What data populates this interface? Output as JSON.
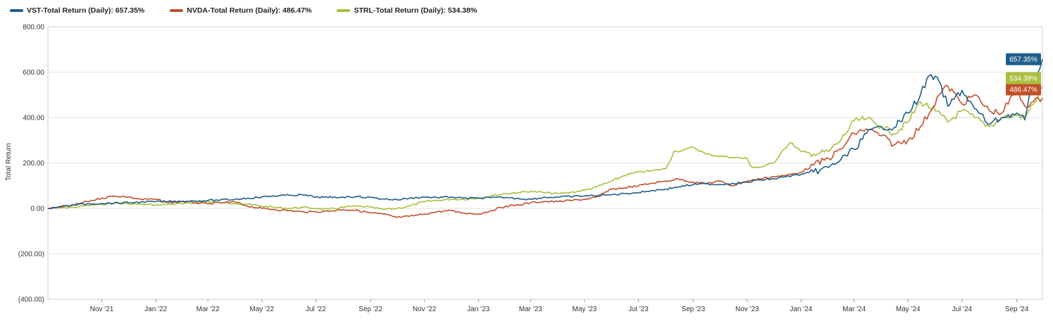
{
  "legend": [
    {
      "label": "VST-Total Return (Daily): 657.35%",
      "color": "#1f5f8b"
    },
    {
      "label": "NVDA-Total Return (Daily): 486.47%",
      "color": "#c0502a"
    },
    {
      "label": "STRL-Total Return (Daily): 534.38%",
      "color": "#a9bf3f"
    }
  ],
  "chart_data": {
    "type": "line",
    "ylabel": "Total Return",
    "ylim": [
      -400,
      800
    ],
    "yticks": [
      800,
      600,
      400,
      200,
      0,
      -200,
      -400
    ],
    "ytick_labels": [
      "800.00",
      "600.00",
      "400.00",
      "200.00",
      "0.00",
      "(200.00)",
      "(400.00)"
    ],
    "x_start": "2021-09-01",
    "x_end": "2024-09-30",
    "xticks": [
      {
        "date": "2021-11-01",
        "label": "Nov '21"
      },
      {
        "date": "2022-01-01",
        "label": "Jan '22"
      },
      {
        "date": "2022-03-01",
        "label": "Mar '22"
      },
      {
        "date": "2022-05-01",
        "label": "May '22"
      },
      {
        "date": "2022-07-01",
        "label": "Jul '22"
      },
      {
        "date": "2022-09-01",
        "label": "Sep '22"
      },
      {
        "date": "2022-11-01",
        "label": "Nov '22"
      },
      {
        "date": "2023-01-01",
        "label": "Jan '23"
      },
      {
        "date": "2023-03-01",
        "label": "Mar '23"
      },
      {
        "date": "2023-05-01",
        "label": "May '23"
      },
      {
        "date": "2023-07-01",
        "label": "Jul '23"
      },
      {
        "date": "2023-09-01",
        "label": "Sep '23"
      },
      {
        "date": "2023-11-01",
        "label": "Nov '23"
      },
      {
        "date": "2024-01-01",
        "label": "Jan '24"
      },
      {
        "date": "2024-03-01",
        "label": "Mar '24"
      },
      {
        "date": "2024-05-01",
        "label": "May '24"
      },
      {
        "date": "2024-07-01",
        "label": "Jul '24"
      },
      {
        "date": "2024-09-01",
        "label": "Sep '24"
      }
    ],
    "grid": true,
    "legend_position": "top-left",
    "series": [
      {
        "name": "VST-Total Return (Daily)",
        "color": "#1f5f8b",
        "end_label": "657.35%",
        "points": [
          [
            "2021-09-01",
            0
          ],
          [
            "2021-09-15",
            8
          ],
          [
            "2021-10-01",
            15
          ],
          [
            "2021-10-15",
            20
          ],
          [
            "2021-11-01",
            22
          ],
          [
            "2021-11-15",
            24
          ],
          [
            "2021-12-01",
            25
          ],
          [
            "2021-12-15",
            28
          ],
          [
            "2022-01-01",
            30
          ],
          [
            "2022-01-15",
            30
          ],
          [
            "2022-02-01",
            32
          ],
          [
            "2022-02-15",
            33
          ],
          [
            "2022-03-01",
            35
          ],
          [
            "2022-03-15",
            37
          ],
          [
            "2022-04-01",
            40
          ],
          [
            "2022-04-15",
            45
          ],
          [
            "2022-05-01",
            50
          ],
          [
            "2022-05-15",
            55
          ],
          [
            "2022-06-01",
            58
          ],
          [
            "2022-06-15",
            60
          ],
          [
            "2022-07-01",
            50
          ],
          [
            "2022-07-15",
            48
          ],
          [
            "2022-08-01",
            50
          ],
          [
            "2022-08-15",
            52
          ],
          [
            "2022-09-01",
            48
          ],
          [
            "2022-09-15",
            42
          ],
          [
            "2022-10-01",
            38
          ],
          [
            "2022-10-15",
            45
          ],
          [
            "2022-11-01",
            50
          ],
          [
            "2022-11-15",
            48
          ],
          [
            "2022-12-01",
            50
          ],
          [
            "2022-12-15",
            45
          ],
          [
            "2023-01-01",
            45
          ],
          [
            "2023-01-15",
            47
          ],
          [
            "2023-02-01",
            48
          ],
          [
            "2023-02-15",
            44
          ],
          [
            "2023-03-01",
            40
          ],
          [
            "2023-03-15",
            48
          ],
          [
            "2023-04-01",
            50
          ],
          [
            "2023-04-15",
            52
          ],
          [
            "2023-05-01",
            55
          ],
          [
            "2023-05-15",
            56
          ],
          [
            "2023-06-01",
            60
          ],
          [
            "2023-06-15",
            65
          ],
          [
            "2023-07-01",
            70
          ],
          [
            "2023-07-15",
            78
          ],
          [
            "2023-08-01",
            85
          ],
          [
            "2023-08-15",
            95
          ],
          [
            "2023-09-01",
            105
          ],
          [
            "2023-09-15",
            108
          ],
          [
            "2023-10-01",
            105
          ],
          [
            "2023-10-15",
            110
          ],
          [
            "2023-11-01",
            115
          ],
          [
            "2023-11-15",
            125
          ],
          [
            "2023-12-01",
            130
          ],
          [
            "2023-12-15",
            140
          ],
          [
            "2024-01-01",
            150
          ],
          [
            "2024-01-15",
            160
          ],
          [
            "2024-02-01",
            180
          ],
          [
            "2024-02-15",
            215
          ],
          [
            "2024-03-01",
            260
          ],
          [
            "2024-03-15",
            330
          ],
          [
            "2024-04-01",
            360
          ],
          [
            "2024-04-15",
            355
          ],
          [
            "2024-05-01",
            420
          ],
          [
            "2024-05-15",
            500
          ],
          [
            "2024-05-25",
            585
          ],
          [
            "2024-06-05",
            560
          ],
          [
            "2024-06-15",
            450
          ],
          [
            "2024-07-01",
            520
          ],
          [
            "2024-07-15",
            440
          ],
          [
            "2024-08-01",
            370
          ],
          [
            "2024-08-15",
            400
          ],
          [
            "2024-09-01",
            420
          ],
          [
            "2024-09-10",
            390
          ],
          [
            "2024-09-20",
            560
          ],
          [
            "2024-09-30",
            657
          ]
        ]
      },
      {
        "name": "NVDA-Total Return (Daily)",
        "color": "#c0502a",
        "end_label": "486.47%",
        "points": [
          [
            "2021-09-01",
            0
          ],
          [
            "2021-09-15",
            5
          ],
          [
            "2021-10-01",
            15
          ],
          [
            "2021-10-15",
            30
          ],
          [
            "2021-11-01",
            45
          ],
          [
            "2021-11-15",
            55
          ],
          [
            "2021-12-01",
            50
          ],
          [
            "2021-12-15",
            40
          ],
          [
            "2022-01-01",
            40
          ],
          [
            "2022-01-15",
            25
          ],
          [
            "2022-02-01",
            30
          ],
          [
            "2022-02-15",
            25
          ],
          [
            "2022-03-01",
            20
          ],
          [
            "2022-03-15",
            25
          ],
          [
            "2022-04-01",
            28
          ],
          [
            "2022-04-15",
            10
          ],
          [
            "2022-05-01",
            0
          ],
          [
            "2022-05-15",
            -5
          ],
          [
            "2022-06-01",
            -10
          ],
          [
            "2022-06-15",
            -15
          ],
          [
            "2022-07-01",
            -15
          ],
          [
            "2022-07-15",
            -12
          ],
          [
            "2022-08-01",
            -5
          ],
          [
            "2022-08-15",
            -8
          ],
          [
            "2022-09-01",
            -20
          ],
          [
            "2022-09-15",
            -25
          ],
          [
            "2022-10-01",
            -40
          ],
          [
            "2022-10-15",
            -35
          ],
          [
            "2022-11-01",
            -25
          ],
          [
            "2022-11-15",
            -15
          ],
          [
            "2022-12-01",
            -10
          ],
          [
            "2022-12-15",
            -20
          ],
          [
            "2023-01-01",
            -25
          ],
          [
            "2023-01-15",
            -10
          ],
          [
            "2023-02-01",
            10
          ],
          [
            "2023-02-15",
            15
          ],
          [
            "2023-03-01",
            25
          ],
          [
            "2023-03-15",
            30
          ],
          [
            "2023-04-01",
            30
          ],
          [
            "2023-04-15",
            35
          ],
          [
            "2023-05-01",
            40
          ],
          [
            "2023-05-15",
            50
          ],
          [
            "2023-06-01",
            85
          ],
          [
            "2023-06-15",
            90
          ],
          [
            "2023-07-01",
            100
          ],
          [
            "2023-07-15",
            110
          ],
          [
            "2023-08-01",
            120
          ],
          [
            "2023-08-15",
            130
          ],
          [
            "2023-09-01",
            115
          ],
          [
            "2023-09-15",
            110
          ],
          [
            "2023-10-01",
            120
          ],
          [
            "2023-10-15",
            100
          ],
          [
            "2023-11-01",
            120
          ],
          [
            "2023-11-15",
            130
          ],
          [
            "2023-12-01",
            140
          ],
          [
            "2023-12-15",
            145
          ],
          [
            "2024-01-01",
            160
          ],
          [
            "2024-01-15",
            190
          ],
          [
            "2024-02-01",
            220
          ],
          [
            "2024-02-15",
            260
          ],
          [
            "2024-03-01",
            330
          ],
          [
            "2024-03-15",
            350
          ],
          [
            "2024-04-01",
            320
          ],
          [
            "2024-04-15",
            280
          ],
          [
            "2024-05-01",
            300
          ],
          [
            "2024-05-15",
            360
          ],
          [
            "2024-05-25",
            420
          ],
          [
            "2024-06-05",
            500
          ],
          [
            "2024-06-15",
            540
          ],
          [
            "2024-07-01",
            460
          ],
          [
            "2024-07-15",
            500
          ],
          [
            "2024-08-01",
            430
          ],
          [
            "2024-08-15",
            420
          ],
          [
            "2024-09-01",
            520
          ],
          [
            "2024-09-10",
            450
          ],
          [
            "2024-09-20",
            470
          ],
          [
            "2024-09-30",
            486
          ]
        ]
      },
      {
        "name": "STRL-Total Return (Daily)",
        "color": "#a9bf3f",
        "end_label": "534.38%",
        "points": [
          [
            "2021-09-01",
            0
          ],
          [
            "2021-09-15",
            2
          ],
          [
            "2021-10-01",
            5
          ],
          [
            "2021-10-15",
            12
          ],
          [
            "2021-11-01",
            18
          ],
          [
            "2021-11-15",
            22
          ],
          [
            "2021-12-01",
            20
          ],
          [
            "2021-12-15",
            18
          ],
          [
            "2022-01-01",
            15
          ],
          [
            "2022-01-15",
            18
          ],
          [
            "2022-02-01",
            20
          ],
          [
            "2022-02-15",
            25
          ],
          [
            "2022-03-01",
            30
          ],
          [
            "2022-03-15",
            25
          ],
          [
            "2022-04-01",
            22
          ],
          [
            "2022-04-15",
            18
          ],
          [
            "2022-05-01",
            10
          ],
          [
            "2022-05-15",
            5
          ],
          [
            "2022-06-01",
            0
          ],
          [
            "2022-06-15",
            5
          ],
          [
            "2022-07-01",
            0
          ],
          [
            "2022-07-15",
            -5
          ],
          [
            "2022-08-01",
            5
          ],
          [
            "2022-08-15",
            10
          ],
          [
            "2022-09-01",
            5
          ],
          [
            "2022-09-15",
            -5
          ],
          [
            "2022-10-01",
            0
          ],
          [
            "2022-10-15",
            10
          ],
          [
            "2022-11-01",
            30
          ],
          [
            "2022-11-15",
            35
          ],
          [
            "2022-12-01",
            40
          ],
          [
            "2022-12-15",
            40
          ],
          [
            "2023-01-01",
            45
          ],
          [
            "2023-01-15",
            55
          ],
          [
            "2023-02-01",
            65
          ],
          [
            "2023-02-15",
            70
          ],
          [
            "2023-03-01",
            75
          ],
          [
            "2023-03-15",
            70
          ],
          [
            "2023-04-01",
            65
          ],
          [
            "2023-04-15",
            70
          ],
          [
            "2023-05-01",
            80
          ],
          [
            "2023-05-15",
            95
          ],
          [
            "2023-06-01",
            120
          ],
          [
            "2023-06-15",
            145
          ],
          [
            "2023-07-01",
            160
          ],
          [
            "2023-07-15",
            165
          ],
          [
            "2023-08-01",
            175
          ],
          [
            "2023-08-10",
            250
          ],
          [
            "2023-08-20",
            255
          ],
          [
            "2023-09-01",
            270
          ],
          [
            "2023-09-15",
            240
          ],
          [
            "2023-10-01",
            230
          ],
          [
            "2023-10-15",
            225
          ],
          [
            "2023-11-01",
            220
          ],
          [
            "2023-11-05",
            185
          ],
          [
            "2023-11-15",
            180
          ],
          [
            "2023-12-01",
            200
          ],
          [
            "2023-12-10",
            250
          ],
          [
            "2023-12-20",
            290
          ],
          [
            "2024-01-01",
            250
          ],
          [
            "2024-01-15",
            240
          ],
          [
            "2024-02-01",
            250
          ],
          [
            "2024-02-15",
            300
          ],
          [
            "2024-03-01",
            385
          ],
          [
            "2024-03-15",
            395
          ],
          [
            "2024-04-01",
            360
          ],
          [
            "2024-04-15",
            330
          ],
          [
            "2024-05-01",
            380
          ],
          [
            "2024-05-15",
            470
          ],
          [
            "2024-06-01",
            430
          ],
          [
            "2024-06-15",
            380
          ],
          [
            "2024-07-01",
            430
          ],
          [
            "2024-07-15",
            400
          ],
          [
            "2024-08-01",
            360
          ],
          [
            "2024-08-15",
            400
          ],
          [
            "2024-09-01",
            410
          ],
          [
            "2024-09-10",
            400
          ],
          [
            "2024-09-20",
            460
          ],
          [
            "2024-09-30",
            534
          ]
        ]
      }
    ]
  }
}
